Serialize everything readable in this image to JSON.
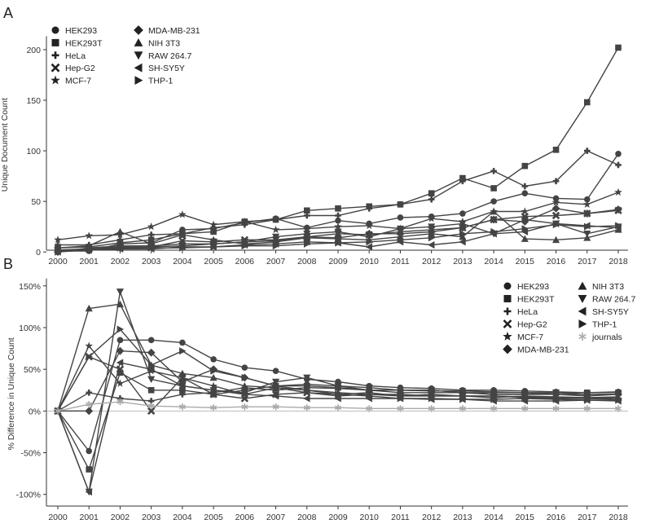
{
  "chart_data": [
    {
      "panel_label": "A",
      "type": "line",
      "ylabel": "Unique Document Count",
      "xlabel": "",
      "ylim": [
        -5,
        210
      ],
      "yticks": [
        0,
        50,
        100,
        150,
        200
      ],
      "categories": [
        "2000",
        "2001",
        "2002",
        "2003",
        "2004",
        "2005",
        "2006",
        "2007",
        "2008",
        "2009",
        "2010",
        "2011",
        "2012",
        "2013",
        "2014",
        "2015",
        "2016",
        "2017",
        "2018"
      ],
      "grid": false,
      "legend_position": "top-left",
      "series": [
        {
          "name": "HEK293",
          "marker": "circle",
          "values": [
            1,
            1,
            8,
            9,
            22,
            23,
            29,
            33,
            24,
            31,
            28,
            34,
            35,
            38,
            50,
            58,
            53,
            52,
            97
          ]
        },
        {
          "name": "HEK293T",
          "marker": "square",
          "values": [
            4,
            5,
            9,
            12,
            18,
            20,
            30,
            32,
            41,
            43,
            45,
            47,
            58,
            73,
            63,
            85,
            101,
            148,
            202
          ]
        },
        {
          "name": "HeLa",
          "marker": "plus",
          "values": [
            7,
            7,
            12,
            17,
            18,
            24,
            27,
            32,
            36,
            36,
            43,
            47,
            52,
            70,
            80,
            65,
            70,
            100,
            86
          ]
        },
        {
          "name": "Hep-G2",
          "marker": "x",
          "values": [
            2,
            3,
            5,
            5,
            11,
            10,
            12,
            12,
            15,
            18,
            17,
            20,
            22,
            24,
            32,
            35,
            36,
            38,
            41
          ]
        },
        {
          "name": "MCF-7",
          "marker": "star",
          "values": [
            12,
            16,
            17,
            25,
            37,
            27,
            30,
            22,
            23,
            25,
            26,
            23,
            33,
            30,
            40,
            40,
            49,
            47,
            59
          ]
        },
        {
          "name": "MDA-MB-231",
          "marker": "diamond",
          "values": [
            0,
            4,
            6,
            6,
            8,
            8,
            10,
            11,
            15,
            14,
            18,
            18,
            20,
            24,
            32,
            30,
            43,
            38,
            42
          ]
        },
        {
          "name": "NIH 3T3",
          "marker": "triangle-up",
          "values": [
            4,
            6,
            20,
            8,
            17,
            12,
            8,
            10,
            14,
            13,
            12,
            15,
            18,
            15,
            40,
            13,
            12,
            14,
            22
          ]
        },
        {
          "name": "RAW 264.7",
          "marker": "triangle-down",
          "values": [
            1,
            2,
            3,
            5,
            6,
            8,
            10,
            15,
            18,
            20,
            15,
            23,
            25,
            28,
            18,
            32,
            28,
            18,
            25
          ]
        },
        {
          "name": "SH-SY5Y",
          "marker": "triangle-left",
          "values": [
            0,
            2,
            3,
            3,
            5,
            5,
            7,
            8,
            10,
            9,
            5,
            10,
            7,
            10,
            18,
            20,
            28,
            26,
            24
          ]
        },
        {
          "name": "THP-1",
          "marker": "triangle-right",
          "values": [
            0,
            3,
            4,
            4,
            4,
            5,
            6,
            6,
            8,
            9,
            10,
            12,
            14,
            18,
            20,
            23,
            27,
            25,
            26
          ]
        }
      ]
    },
    {
      "panel_label": "B",
      "type": "line",
      "ylabel": "% Difference in Unique Count",
      "xlabel": "",
      "ylim": [
        -105,
        155
      ],
      "yticks": [
        -100,
        -50,
        0,
        50,
        100,
        150
      ],
      "ytick_labels": [
        "-100%",
        "-50%",
        "0%",
        "50%",
        "100%",
        "150%"
      ],
      "categories": [
        "2000",
        "2001",
        "2002",
        "2003",
        "2004",
        "2005",
        "2006",
        "2007",
        "2008",
        "2009",
        "2010",
        "2011",
        "2012",
        "2013",
        "2014",
        "2015",
        "2016",
        "2017",
        "2018"
      ],
      "grid": false,
      "zero_line": true,
      "legend_position": "top-right",
      "series": [
        {
          "name": "HEK293",
          "marker": "circle",
          "values": [
            0,
            -48,
            85,
            85,
            82,
            62,
            52,
            48,
            38,
            35,
            30,
            28,
            27,
            25,
            25,
            24,
            23,
            22,
            23
          ]
        },
        {
          "name": "HEK293T",
          "marker": "square",
          "values": [
            0,
            -70,
            46,
            25,
            25,
            20,
            25,
            30,
            30,
            28,
            25,
            25,
            24,
            24,
            23,
            22,
            22,
            22,
            22
          ]
        },
        {
          "name": "HeLa",
          "marker": "plus",
          "values": [
            0,
            22,
            15,
            12,
            20,
            22,
            28,
            25,
            28,
            27,
            25,
            22,
            22,
            22,
            20,
            20,
            20,
            20,
            20
          ]
        },
        {
          "name": "Hep-G2",
          "marker": "x",
          "values": [
            0,
            65,
            50,
            0,
            40,
            20,
            15,
            20,
            22,
            18,
            20,
            18,
            20,
            18,
            16,
            18,
            17,
            16,
            17
          ]
        },
        {
          "name": "MCF-7",
          "marker": "star",
          "values": [
            0,
            78,
            33,
            48,
            40,
            30,
            20,
            28,
            22,
            20,
            22,
            18,
            18,
            18,
            18,
            16,
            15,
            15,
            14
          ]
        },
        {
          "name": "MDA-MB-231",
          "marker": "diamond",
          "values": [
            0,
            0,
            72,
            70,
            35,
            50,
            40,
            30,
            32,
            30,
            25,
            25,
            25,
            22,
            22,
            22,
            20,
            18,
            20
          ]
        },
        {
          "name": "NIH 3T3",
          "marker": "triangle-up",
          "values": [
            0,
            123,
            128,
            55,
            45,
            40,
            30,
            28,
            25,
            22,
            20,
            20,
            18,
            18,
            18,
            17,
            16,
            15,
            16
          ]
        },
        {
          "name": "RAW 264.7",
          "marker": "triangle-down",
          "values": [
            0,
            -97,
            143,
            38,
            30,
            25,
            22,
            35,
            40,
            30,
            28,
            25,
            25,
            22,
            20,
            20,
            22,
            20,
            20
          ]
        },
        {
          "name": "SH-SY5Y",
          "marker": "triangle-left",
          "values": [
            0,
            -97,
            58,
            50,
            30,
            25,
            20,
            18,
            15,
            15,
            15,
            15,
            14,
            14,
            12,
            12,
            12,
            13,
            12
          ]
        },
        {
          "name": "THP-1",
          "marker": "triangle-right",
          "values": [
            0,
            65,
            98,
            55,
            72,
            48,
            40,
            30,
            25,
            20,
            18,
            15,
            15,
            14,
            14,
            15,
            14,
            13,
            13
          ]
        },
        {
          "name": "journals",
          "marker": "asterisk",
          "color": "#aaaaaa",
          "values": [
            0,
            8,
            11,
            6,
            5,
            4,
            5,
            5,
            4,
            4,
            3,
            3,
            3,
            3,
            3,
            3,
            3,
            3,
            3
          ]
        }
      ]
    }
  ]
}
